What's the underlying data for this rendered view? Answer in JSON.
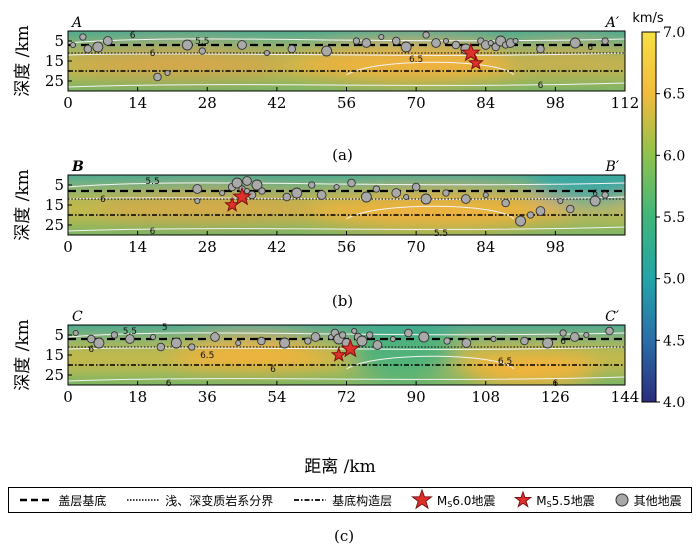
{
  "chart_data": {
    "type": "heatmap",
    "ylabel": "深度 /km",
    "xlabel": "距离 /km",
    "colorbar": {
      "unit": "km/s",
      "min": 4.0,
      "max": 7.0,
      "ticks": [
        "7.0",
        "6.5",
        "6.0",
        "5.5",
        "5.0",
        "4.5",
        "4.0"
      ],
      "colors": [
        "#2a2c7e",
        "#2b6fa9",
        "#23a4a8",
        "#3fb57b",
        "#90c24d",
        "#f2ba3c",
        "#f7e043"
      ]
    },
    "panels": [
      {
        "id": "a",
        "caption": "(a)",
        "start_label": "A",
        "end_label": "A′",
        "xlim": [
          0,
          112
        ],
        "xticks": [
          "0",
          "14",
          "28",
          "42",
          "56",
          "70",
          "84",
          "98",
          "112"
        ],
        "ylim": [
          0,
          30
        ],
        "yticks": [
          "5",
          "15",
          "25"
        ],
        "boundaries": {
          "sediment_base": 7,
          "shallow_deep": 11,
          "basement": 20
        },
        "contour_labels": [
          {
            "text": "6",
            "x": 13,
            "y": 2
          },
          {
            "text": "5.5",
            "x": 27,
            "y": 5
          },
          {
            "text": "6",
            "x": 17,
            "y": 11
          },
          {
            "text": "6.5",
            "x": 70,
            "y": 14
          },
          {
            "text": "6",
            "x": 105,
            "y": 8
          },
          {
            "text": "6",
            "x": 95,
            "y": 27
          }
        ],
        "ms60": [
          {
            "x": 81,
            "y": 11
          }
        ],
        "ms55": [
          {
            "x": 82,
            "y": 16
          }
        ],
        "quakes": [
          [
            1,
            7
          ],
          [
            4,
            9
          ],
          [
            6,
            8
          ],
          [
            3,
            3
          ],
          [
            8,
            5
          ],
          [
            20,
            21
          ],
          [
            18,
            23
          ],
          [
            24,
            7
          ],
          [
            27,
            10
          ],
          [
            35,
            7
          ],
          [
            40,
            11
          ],
          [
            45,
            9
          ],
          [
            52,
            10
          ],
          [
            58,
            5
          ],
          [
            60,
            6
          ],
          [
            63,
            3
          ],
          [
            66,
            5
          ],
          [
            68,
            8
          ],
          [
            72,
            2
          ],
          [
            74,
            6
          ],
          [
            76,
            5
          ],
          [
            78,
            7
          ],
          [
            80,
            9
          ],
          [
            83,
            5
          ],
          [
            84,
            7
          ],
          [
            85,
            6
          ],
          [
            86,
            8
          ],
          [
            87,
            5
          ],
          [
            88,
            7
          ],
          [
            89,
            6
          ],
          [
            90,
            5
          ],
          [
            95,
            9
          ],
          [
            102,
            6
          ],
          [
            108,
            5
          ]
        ]
      },
      {
        "id": "b",
        "caption": "(b)",
        "start_label": "B",
        "end_label": "B′",
        "xlim": [
          0,
          112
        ],
        "xticks": [
          "0",
          "14",
          "28",
          "42",
          "56",
          "70",
          "84",
          "98"
        ],
        "ylim": [
          0,
          30
        ],
        "yticks": [
          "5",
          "15",
          "25"
        ],
        "boundaries": {
          "sediment_base": 8,
          "shallow_deep": 12,
          "basement": 20
        },
        "contour_labels": [
          {
            "text": "5.5",
            "x": 17,
            "y": 3
          },
          {
            "text": "6",
            "x": 7,
            "y": 12
          },
          {
            "text": "6",
            "x": 17,
            "y": 28
          },
          {
            "text": "5.5",
            "x": 75,
            "y": 29
          },
          {
            "text": "6",
            "x": 106,
            "y": 9
          }
        ],
        "ms60": [
          {
            "x": 35,
            "y": 11
          }
        ],
        "ms55": [
          {
            "x": 33,
            "y": 15
          }
        ],
        "quakes": [
          [
            31,
            9
          ],
          [
            33,
            6
          ],
          [
            34,
            4
          ],
          [
            35,
            7
          ],
          [
            36,
            3
          ],
          [
            36,
            8
          ],
          [
            37,
            10
          ],
          [
            38,
            5
          ],
          [
            39,
            8
          ],
          [
            26,
            7
          ],
          [
            26,
            13
          ],
          [
            44,
            11
          ],
          [
            46,
            9
          ],
          [
            49,
            5
          ],
          [
            51,
            10
          ],
          [
            54,
            6
          ],
          [
            57,
            4
          ],
          [
            60,
            11
          ],
          [
            62,
            7
          ],
          [
            66,
            9
          ],
          [
            68,
            11
          ],
          [
            70,
            6
          ],
          [
            72,
            12
          ],
          [
            76,
            9
          ],
          [
            80,
            12
          ],
          [
            84,
            10
          ],
          [
            88,
            14
          ],
          [
            91,
            23
          ],
          [
            93,
            20
          ],
          [
            95,
            18
          ],
          [
            99,
            13
          ],
          [
            101,
            17
          ],
          [
            106,
            13
          ],
          [
            108,
            10
          ]
        ]
      },
      {
        "id": "c",
        "caption": "(c)",
        "start_label": "C",
        "end_label": "C′",
        "xlim": [
          0,
          144
        ],
        "xticks": [
          "0",
          "18",
          "36",
          "54",
          "72",
          "90",
          "108",
          "126",
          "144"
        ],
        "ylim": [
          0,
          30
        ],
        "yticks": [
          "5",
          "15",
          "25"
        ],
        "boundaries": {
          "sediment_base": 7,
          "shallow_deep": 11,
          "basement": 20
        },
        "contour_labels": [
          {
            "text": "5.5",
            "x": 16,
            "y": 3
          },
          {
            "text": "5",
            "x": 25,
            "y": 1
          },
          {
            "text": "6",
            "x": 6,
            "y": 12
          },
          {
            "text": "6.5",
            "x": 36,
            "y": 15
          },
          {
            "text": "6",
            "x": 53,
            "y": 22
          },
          {
            "text": "6.5",
            "x": 113,
            "y": 18
          },
          {
            "text": "6",
            "x": 126,
            "y": 29
          },
          {
            "text": "6",
            "x": 26,
            "y": 29
          },
          {
            "text": "6",
            "x": 128,
            "y": 8
          }
        ],
        "ms60": [
          {
            "x": 73,
            "y": 12
          }
        ],
        "ms55": [
          {
            "x": 70,
            "y": 15
          }
        ],
        "quakes": [
          [
            2,
            4
          ],
          [
            6,
            7
          ],
          [
            8,
            9
          ],
          [
            12,
            5
          ],
          [
            16,
            7
          ],
          [
            22,
            6
          ],
          [
            24,
            11
          ],
          [
            28,
            9
          ],
          [
            32,
            11
          ],
          [
            38,
            6
          ],
          [
            44,
            9
          ],
          [
            50,
            8
          ],
          [
            56,
            9
          ],
          [
            62,
            8
          ],
          [
            64,
            6
          ],
          [
            68,
            6
          ],
          [
            69,
            4
          ],
          [
            70,
            7
          ],
          [
            71,
            5
          ],
          [
            72,
            9
          ],
          [
            74,
            3
          ],
          [
            75,
            6
          ],
          [
            76,
            8
          ],
          [
            78,
            5
          ],
          [
            80,
            10
          ],
          [
            84,
            7
          ],
          [
            88,
            4
          ],
          [
            92,
            6
          ],
          [
            98,
            8
          ],
          [
            103,
            9
          ],
          [
            110,
            7
          ],
          [
            118,
            8
          ],
          [
            124,
            9
          ],
          [
            128,
            4
          ],
          [
            131,
            6
          ],
          [
            134,
            5
          ],
          [
            140,
            3
          ]
        ]
      }
    ],
    "legend": {
      "sediment_base": "盖层基底",
      "shallow_deep": "浅、深变质岩系分界",
      "basement": "基底构造层",
      "ms60_prefix": "M",
      "ms60_sub": "S",
      "ms60_suffix": "6.0地震",
      "ms55_prefix": "M",
      "ms55_sub": "S",
      "ms55_suffix": "5.5地震",
      "other": "其他地震"
    }
  }
}
